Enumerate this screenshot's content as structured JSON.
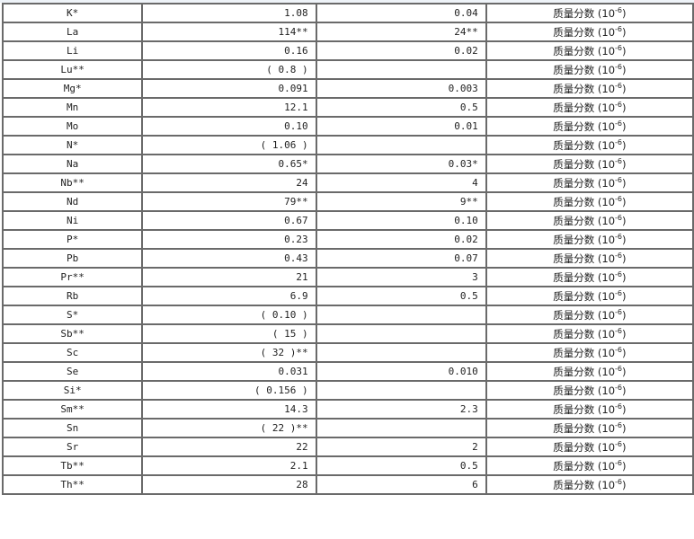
{
  "unit_label": "质量分数 (10",
  "unit_exp": "-6",
  "unit_close": ")",
  "rows": [
    {
      "element": "K*",
      "value": "1.08",
      "uncertainty": "0.04"
    },
    {
      "element": "La",
      "value": "114**",
      "uncertainty": "24**"
    },
    {
      "element": "Li",
      "value": "0.16",
      "uncertainty": "0.02"
    },
    {
      "element": "Lu**",
      "value": "( 0.8 )",
      "uncertainty": ""
    },
    {
      "element": "Mg*",
      "value": "0.091",
      "uncertainty": "0.003"
    },
    {
      "element": "Mn",
      "value": "12.1",
      "uncertainty": "0.5"
    },
    {
      "element": "Mo",
      "value": "0.10",
      "uncertainty": "0.01"
    },
    {
      "element": "N*",
      "value": "( 1.06 )",
      "uncertainty": ""
    },
    {
      "element": "Na",
      "value": "0.65*",
      "uncertainty": "0.03*"
    },
    {
      "element": "Nb**",
      "value": "24",
      "uncertainty": "4"
    },
    {
      "element": "Nd",
      "value": "79**",
      "uncertainty": "9**"
    },
    {
      "element": "Ni",
      "value": "0.67",
      "uncertainty": "0.10"
    },
    {
      "element": "P*",
      "value": "0.23",
      "uncertainty": "0.02"
    },
    {
      "element": "Pb",
      "value": "0.43",
      "uncertainty": "0.07"
    },
    {
      "element": "Pr**",
      "value": "21",
      "uncertainty": "3"
    },
    {
      "element": "Rb",
      "value": "6.9",
      "uncertainty": "0.5"
    },
    {
      "element": "S*",
      "value": "( 0.10 )",
      "uncertainty": ""
    },
    {
      "element": "Sb**",
      "value": "( 15 )",
      "uncertainty": ""
    },
    {
      "element": "Sc",
      "value": "( 32 )**",
      "uncertainty": ""
    },
    {
      "element": "Se",
      "value": "0.031",
      "uncertainty": "0.010"
    },
    {
      "element": "Si*",
      "value": "( 0.156 )",
      "uncertainty": ""
    },
    {
      "element": "Sm**",
      "value": "14.3",
      "uncertainty": "2.3"
    },
    {
      "element": "Sn",
      "value": "( 22 )**",
      "uncertainty": ""
    },
    {
      "element": "Sr",
      "value": "22",
      "uncertainty": "2"
    },
    {
      "element": "Tb**",
      "value": "2.1",
      "uncertainty": "0.5"
    },
    {
      "element": "Th**",
      "value": "28",
      "uncertainty": "6"
    }
  ]
}
